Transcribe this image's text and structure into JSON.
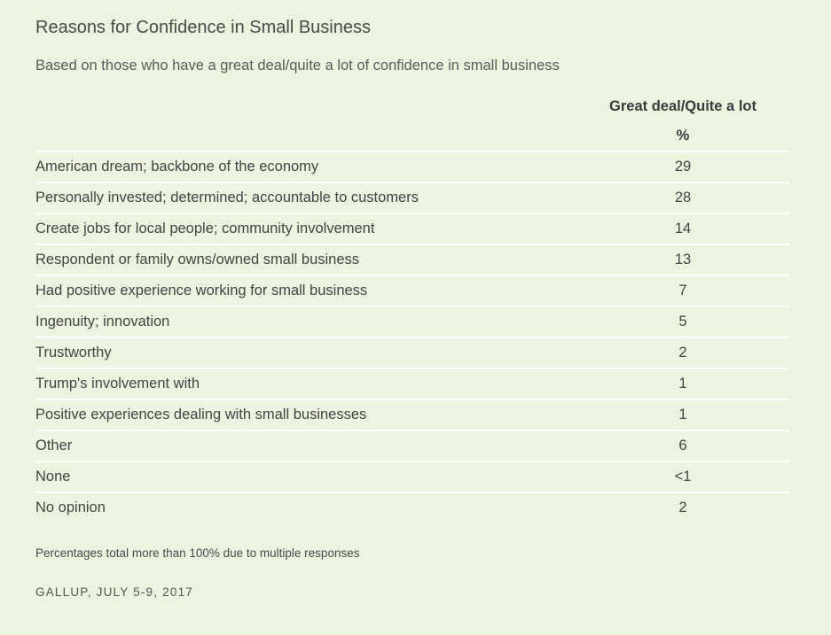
{
  "chart_data": {
    "type": "table",
    "title": "Reasons for Confidence in Small Business",
    "subtitle": "Based on those who have a great deal/quite a lot of confidence in small business",
    "column_header": "Great deal/Quite a lot",
    "unit": "%",
    "rows": [
      {
        "label": "American dream; backbone of the economy",
        "value": "29"
      },
      {
        "label": "Personally invested; determined; accountable to customers",
        "value": "28"
      },
      {
        "label": "Create jobs for local people; community involvement",
        "value": "14"
      },
      {
        "label": "Respondent or family owns/owned small business",
        "value": "13"
      },
      {
        "label": "Had positive experience working for small business",
        "value": "7"
      },
      {
        "label": "Ingenuity; innovation",
        "value": "5"
      },
      {
        "label": "Trustworthy",
        "value": "2"
      },
      {
        "label": "Trump's involvement with",
        "value": "1"
      },
      {
        "label": "Positive experiences dealing with small businesses",
        "value": "1"
      },
      {
        "label": "Other",
        "value": "6"
      },
      {
        "label": "None",
        "value": "<1"
      },
      {
        "label": "No opinion",
        "value": "2"
      }
    ],
    "note": "Percentages total more than 100% due to multiple responses",
    "source": "GALLUP, JULY 5-9, 2017"
  }
}
